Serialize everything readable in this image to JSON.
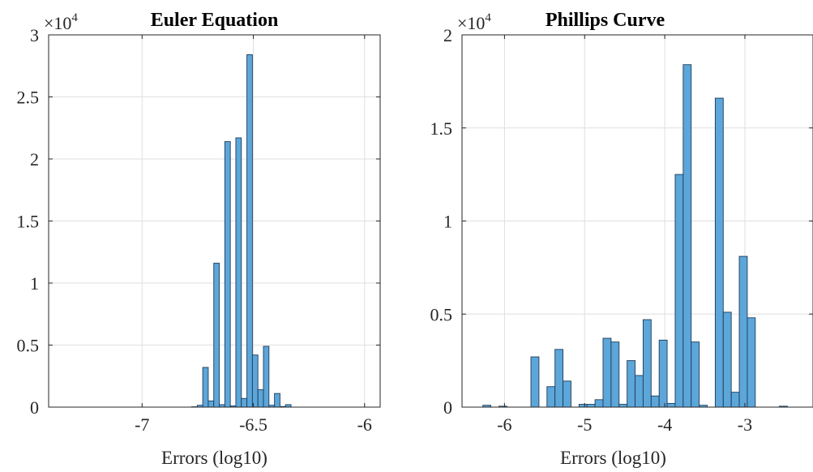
{
  "chart_data": [
    {
      "type": "bar",
      "title": "Euler Equation",
      "xlabel": "Errors (log10)",
      "ylabel": "",
      "xlim": [
        -7.42,
        -5.93
      ],
      "ylim": [
        0,
        30000
      ],
      "y_multiplier_base": "×10",
      "y_multiplier_exp": "4",
      "grid": true,
      "bar_color": "#5ca6da",
      "edge_color": "#1f3b57",
      "xticks": [
        -7,
        -6.5,
        -6
      ],
      "xtick_labels": [
        "-7",
        "-6.5",
        "-6"
      ],
      "yticks": [
        0,
        5000,
        10000,
        15000,
        20000,
        25000,
        30000
      ],
      "ytick_labels": [
        "0",
        "0.5",
        "1",
        "1.5",
        "2",
        "2.5",
        "3"
      ],
      "bin_width": 0.0248,
      "bin_start": -7.397,
      "values": [
        0,
        0,
        0,
        0,
        0,
        0,
        0,
        0,
        0,
        0,
        0,
        0,
        0,
        0,
        0,
        0,
        0,
        0,
        0,
        0,
        0,
        0,
        0,
        0,
        0,
        30,
        150,
        3200,
        500,
        11600,
        200,
        21400,
        100,
        21700,
        700,
        28400,
        4200,
        1400,
        4900,
        150,
        1100,
        50,
        200,
        0,
        0,
        0,
        0,
        0,
        0,
        0,
        0,
        0,
        0,
        0,
        0,
        0,
        0,
        0,
        0,
        0
      ]
    },
    {
      "type": "bar",
      "title": "Phillips Curve",
      "xlabel": "Errors (log10)",
      "ylabel": "",
      "xlim": [
        -6.53,
        -2.15
      ],
      "ylim": [
        0,
        20000
      ],
      "y_multiplier_base": "×10",
      "y_multiplier_exp": "4",
      "grid": true,
      "bar_color": "#5ca6da",
      "edge_color": "#1f3b57",
      "xticks": [
        -6,
        -5,
        -4,
        -3
      ],
      "xtick_labels": [
        "-6",
        "-5",
        "-4",
        "-3"
      ],
      "yticks": [
        0,
        5000,
        10000,
        15000,
        20000
      ],
      "ytick_labels": [
        "0",
        "0.5",
        "1",
        "1.5",
        "2"
      ],
      "bin_width": 0.1,
      "bin_start": -6.27,
      "values": [
        100,
        0,
        50,
        0,
        0,
        0,
        2700,
        0,
        1100,
        3100,
        1400,
        0,
        150,
        150,
        400,
        3700,
        3500,
        150,
        2500,
        1700,
        4700,
        600,
        3600,
        200,
        12500,
        18400,
        3500,
        100,
        0,
        16600,
        5100,
        800,
        8100,
        4800,
        0,
        0,
        0,
        50,
        0,
        0,
        0,
        0,
        0,
        0,
        0,
        0,
        0,
        0,
        0
      ]
    }
  ]
}
